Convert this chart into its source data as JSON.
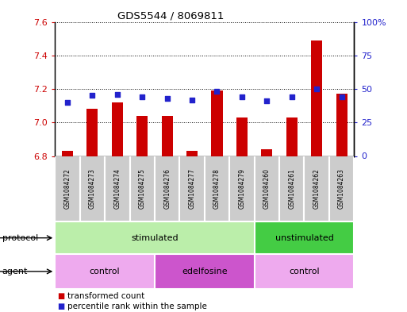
{
  "title": "GDS5544 / 8069811",
  "samples": [
    "GSM1084272",
    "GSM1084273",
    "GSM1084274",
    "GSM1084275",
    "GSM1084276",
    "GSM1084277",
    "GSM1084278",
    "GSM1084279",
    "GSM1084260",
    "GSM1084261",
    "GSM1084262",
    "GSM1084263"
  ],
  "transformed_count": [
    6.83,
    7.08,
    7.12,
    7.04,
    7.04,
    6.83,
    7.19,
    7.03,
    6.84,
    7.03,
    7.49,
    7.17
  ],
  "percentile_rank": [
    40,
    45,
    46,
    44,
    43,
    42,
    48,
    44,
    41,
    44,
    50,
    44
  ],
  "ylim_left": [
    6.8,
    7.6
  ],
  "ylim_right": [
    0,
    100
  ],
  "yticks_left": [
    6.8,
    7.0,
    7.2,
    7.4,
    7.6
  ],
  "yticks_right": [
    0,
    25,
    50,
    75,
    100
  ],
  "ytick_labels_right": [
    "0",
    "25",
    "50",
    "75",
    "100%"
  ],
  "bar_color": "#cc0000",
  "dot_color": "#2222cc",
  "bar_width": 0.45,
  "protocol_groups": [
    {
      "label": "stimulated",
      "start": 0,
      "end": 7,
      "color": "#bbeeaa"
    },
    {
      "label": "unstimulated",
      "start": 8,
      "end": 11,
      "color": "#44cc44"
    }
  ],
  "agent_groups": [
    {
      "label": "control",
      "start": 0,
      "end": 3,
      "color": "#eeaaee"
    },
    {
      "label": "edelfosine",
      "start": 4,
      "end": 7,
      "color": "#cc55cc"
    },
    {
      "label": "control",
      "start": 8,
      "end": 11,
      "color": "#eeaaee"
    }
  ],
  "protocol_label": "protocol",
  "agent_label": "agent",
  "legend_bar_label": "transformed count",
  "legend_dot_label": "percentile rank within the sample",
  "sample_box_color": "#cccccc",
  "sample_box_edge": "#ffffff"
}
